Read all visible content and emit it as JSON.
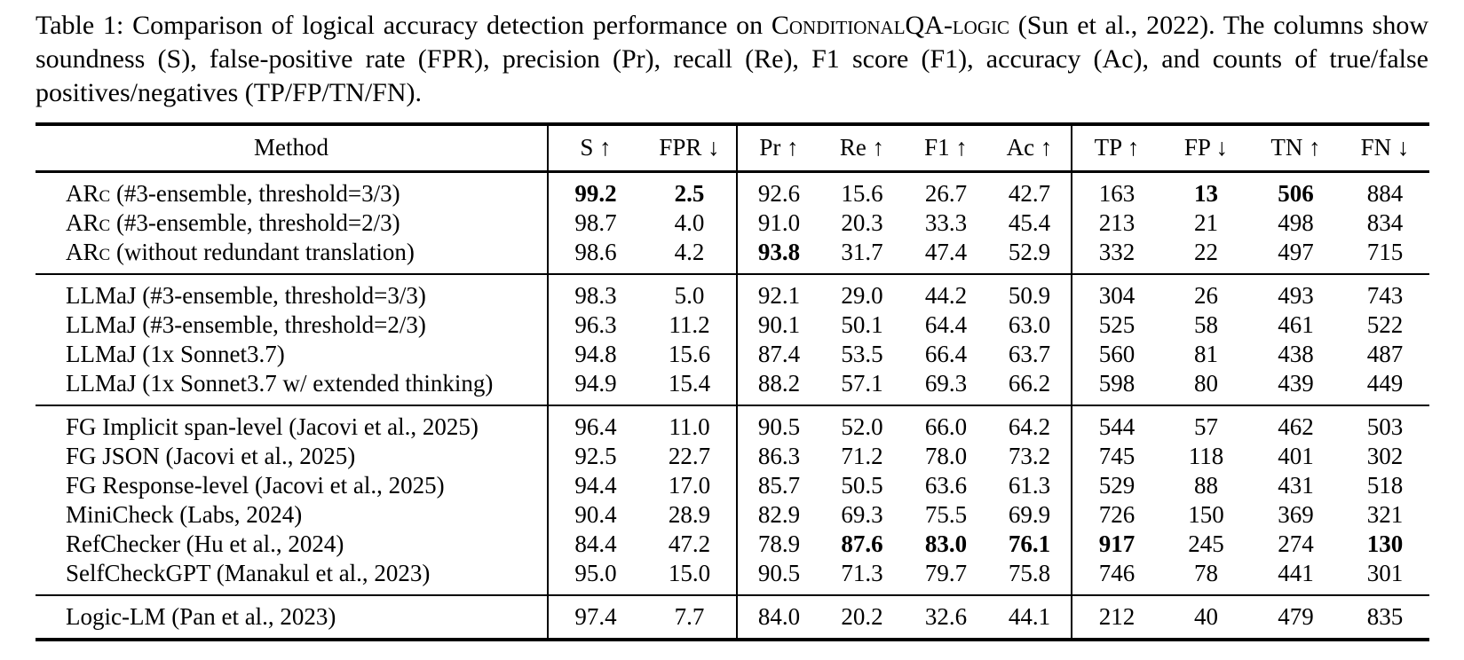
{
  "caption": {
    "part1": "Table 1: Comparison of logical accuracy detection performance on ",
    "smallcaps": "ConditionalQA-logic",
    "part2": " (Sun et al., 2022). The columns show soundness (S), false-positive rate (FPR), precision (Pr), recall (Re), F1 score (F1), accuracy (Ac), and counts of true/false positives/negatives (TP/FP/TN/FN)."
  },
  "table": {
    "columns": [
      {
        "key": "method",
        "label": "Method",
        "arrow": ""
      },
      {
        "key": "s",
        "label": "S",
        "arrow": "↑"
      },
      {
        "key": "fpr",
        "label": "FPR",
        "arrow": "↓"
      },
      {
        "key": "pr",
        "label": "Pr",
        "arrow": "↑"
      },
      {
        "key": "re",
        "label": "Re",
        "arrow": "↑"
      },
      {
        "key": "f1",
        "label": "F1",
        "arrow": "↑"
      },
      {
        "key": "ac",
        "label": "Ac",
        "arrow": "↑"
      },
      {
        "key": "tp",
        "label": "TP",
        "arrow": "↑"
      },
      {
        "key": "fp",
        "label": "FP",
        "arrow": "↓"
      },
      {
        "key": "tn",
        "label": "TN",
        "arrow": "↑"
      },
      {
        "key": "fn",
        "label": "FN",
        "arrow": "↓"
      }
    ],
    "groups": [
      {
        "rows": [
          {
            "method_sc": "ARc",
            "method_rest": " (#3-ensemble, threshold=3/3)",
            "cells": [
              "99.2",
              "2.5",
              "92.6",
              "15.6",
              "26.7",
              "42.7",
              "163",
              "13",
              "506",
              "884"
            ],
            "bold": [
              0,
              1,
              7,
              8
            ]
          },
          {
            "method_sc": "ARc",
            "method_rest": " (#3-ensemble, threshold=2/3)",
            "cells": [
              "98.7",
              "4.0",
              "91.0",
              "20.3",
              "33.3",
              "45.4",
              "213",
              "21",
              "498",
              "834"
            ],
            "bold": []
          },
          {
            "method_sc": "ARc",
            "method_rest": " (without redundant translation)",
            "cells": [
              "98.6",
              "4.2",
              "93.8",
              "31.7",
              "47.4",
              "52.9",
              "332",
              "22",
              "497",
              "715"
            ],
            "bold": [
              2
            ]
          }
        ]
      },
      {
        "rows": [
          {
            "method_sc": "",
            "method_rest": "LLMaJ (#3-ensemble, threshold=3/3)",
            "cells": [
              "98.3",
              "5.0",
              "92.1",
              "29.0",
              "44.2",
              "50.9",
              "304",
              "26",
              "493",
              "743"
            ],
            "bold": []
          },
          {
            "method_sc": "",
            "method_rest": "LLMaJ (#3-ensemble, threshold=2/3)",
            "cells": [
              "96.3",
              "11.2",
              "90.1",
              "50.1",
              "64.4",
              "63.0",
              "525",
              "58",
              "461",
              "522"
            ],
            "bold": []
          },
          {
            "method_sc": "",
            "method_rest": "LLMaJ (1x Sonnet3.7)",
            "cells": [
              "94.8",
              "15.6",
              "87.4",
              "53.5",
              "66.4",
              "63.7",
              "560",
              "81",
              "438",
              "487"
            ],
            "bold": []
          },
          {
            "method_sc": "",
            "method_rest": "LLMaJ (1x Sonnet3.7 w/ extended thinking)",
            "cells": [
              "94.9",
              "15.4",
              "88.2",
              "57.1",
              "69.3",
              "66.2",
              "598",
              "80",
              "439",
              "449"
            ],
            "bold": []
          }
        ]
      },
      {
        "rows": [
          {
            "method_sc": "",
            "method_rest": "FG Implicit span-level (Jacovi et al., 2025)",
            "cells": [
              "96.4",
              "11.0",
              "90.5",
              "52.0",
              "66.0",
              "64.2",
              "544",
              "57",
              "462",
              "503"
            ],
            "bold": []
          },
          {
            "method_sc": "",
            "method_rest": "FG JSON (Jacovi et al., 2025)",
            "cells": [
              "92.5",
              "22.7",
              "86.3",
              "71.2",
              "78.0",
              "73.2",
              "745",
              "118",
              "401",
              "302"
            ],
            "bold": []
          },
          {
            "method_sc": "",
            "method_rest": "FG Response-level (Jacovi et al., 2025)",
            "cells": [
              "94.4",
              "17.0",
              "85.7",
              "50.5",
              "63.6",
              "61.3",
              "529",
              "88",
              "431",
              "518"
            ],
            "bold": []
          },
          {
            "method_sc": "",
            "method_rest": "MiniCheck (Labs, 2024)",
            "cells": [
              "90.4",
              "28.9",
              "82.9",
              "69.3",
              "75.5",
              "69.9",
              "726",
              "150",
              "369",
              "321"
            ],
            "bold": []
          },
          {
            "method_sc": "",
            "method_rest": "RefChecker (Hu et al., 2024)",
            "cells": [
              "84.4",
              "47.2",
              "78.9",
              "87.6",
              "83.0",
              "76.1",
              "917",
              "245",
              "274",
              "130"
            ],
            "bold": [
              3,
              4,
              5,
              6,
              9
            ]
          },
          {
            "method_sc": "",
            "method_rest": "SelfCheckGPT (Manakul et al., 2023)",
            "cells": [
              "95.0",
              "15.0",
              "90.5",
              "71.3",
              "79.7",
              "75.8",
              "746",
              "78",
              "441",
              "301"
            ],
            "bold": []
          }
        ]
      },
      {
        "rows": [
          {
            "method_sc": "",
            "method_rest": "Logic-LM (Pan et al., 2023)",
            "cells": [
              "97.4",
              "7.7",
              "84.0",
              "20.2",
              "32.6",
              "44.1",
              "212",
              "40",
              "479",
              "835"
            ],
            "bold": []
          }
        ]
      }
    ]
  }
}
